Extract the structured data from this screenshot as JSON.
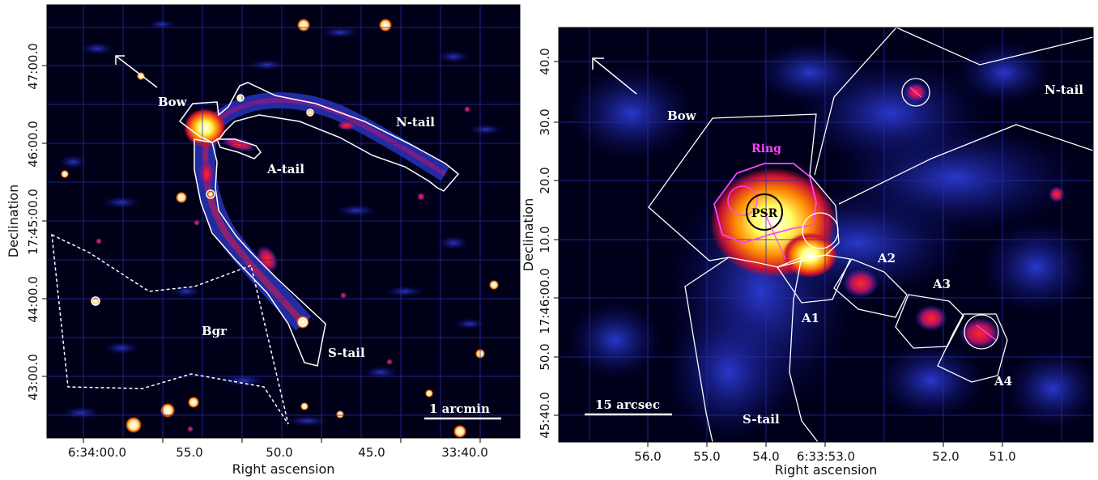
{
  "left_panel": {
    "xlabel": "Right ascension",
    "ylabel": "Declination",
    "x_ticks": [
      "6:34:00.0",
      "55.0",
      "50.0",
      "45.0",
      "33:40.0"
    ],
    "y_ticks": [
      "47:00.0",
      "46:00.0",
      "17:45:00.0",
      "44:00.0",
      "43:00.0"
    ],
    "region_labels": {
      "bow": "Bow",
      "n_tail": "N-tail",
      "a_tail": "A-tail",
      "s_tail": "S-tail",
      "bgr": "Bgr"
    },
    "scale_bar": "1 arcmin"
  },
  "right_panel": {
    "xlabel": "Right ascension",
    "ylabel": "Declination",
    "x_ticks": [
      "56.0",
      "55.0",
      "54.0",
      "6:33:53.0",
      "52.0",
      "51.0"
    ],
    "y_ticks": [
      "40.0",
      "30.0",
      "20.0",
      "10.0",
      "17:46:00.0",
      "50.0",
      "45:40.0"
    ],
    "region_labels": {
      "bow": "Bow",
      "ring": "Ring",
      "psr": "PSR",
      "n_tail": "N-tail",
      "s_tail": "S-tail",
      "a1": "A1",
      "a2": "A2",
      "a3": "A3",
      "a4": "A4"
    },
    "scale_bar": "15 arcsec"
  },
  "colors": {
    "background": "#000019",
    "grid": "#2a2aa8",
    "contour": "#ffffff",
    "ring": "#ff44ff"
  }
}
